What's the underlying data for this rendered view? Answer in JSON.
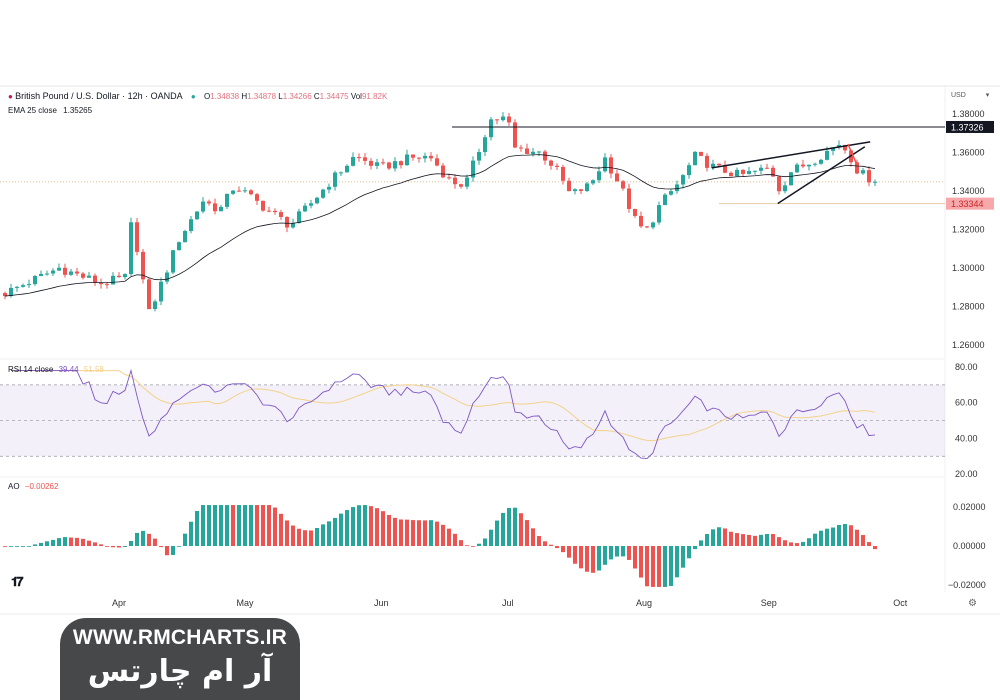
{
  "header": {
    "symbol": "British Pound / U.S. Dollar · 12h · OANDA",
    "o_label": "O",
    "o": "1.34838",
    "h_label": "H",
    "h": "1.34878",
    "l_label": "L",
    "l": "1.34266",
    "c_label": "C",
    "c": "1.34475",
    "vol_label": "Vol",
    "vol": "91.82K",
    "ema_label": "EMA 25 close",
    "ema": "1.35265",
    "currency": "USD"
  },
  "rsi_header": {
    "label": "RSI 14 close",
    "value": "39.44",
    "ma": "51.58"
  },
  "ao_header": {
    "label": "AO",
    "value": "−0.00262"
  },
  "watermark": {
    "url": "WWW.RMCHARTS.IR",
    "name": "آر ام چارتس"
  },
  "logo": "TV",
  "colors": {
    "up": "#26a69a",
    "down": "#ef5350",
    "ema": "#131722",
    "rsi": "#7e57c2",
    "rsi_ma": "#f3d28b",
    "support": "#e3c9a8"
  },
  "chart_data": {
    "type": "candlestick",
    "title": "British Pound / U.S. Dollar · 12h · OANDA",
    "price_axis": {
      "ticks": [
        "1.38000",
        "1.36000",
        "1.34000",
        "1.32000",
        "1.30000",
        "1.28000",
        "1.26000"
      ],
      "range": [
        1.2525,
        1.3925
      ]
    },
    "price_labels": [
      {
        "value": 1.37326,
        "text": "1.37326",
        "style": "dark"
      },
      {
        "value": 1.33344,
        "text": "1.33344",
        "style": "red"
      }
    ],
    "last_close": 1.34475,
    "x_axis": {
      "ticks": [
        {
          "label": "Apr",
          "index": 19
        },
        {
          "label": "May",
          "index": 40
        },
        {
          "label": "Jun",
          "index": 62.7
        },
        {
          "label": "Jul",
          "index": 83.8
        },
        {
          "label": "Aug",
          "index": 106.5
        },
        {
          "label": "Sep",
          "index": 127.3
        },
        {
          "label": "Oct",
          "index": 149.2
        }
      ]
    },
    "candle_count": 146,
    "close_path": [
      [
        0,
        1.287
      ],
      [
        9,
        1.3
      ],
      [
        16,
        1.292
      ],
      [
        20,
        1.295
      ],
      [
        21,
        1.322
      ],
      [
        22.5,
        1.305
      ],
      [
        23.8,
        1.275
      ],
      [
        25.8,
        1.29
      ],
      [
        29,
        1.315
      ],
      [
        33,
        1.335
      ],
      [
        35.8,
        1.33
      ],
      [
        38.3,
        1.343
      ],
      [
        42.5,
        1.333
      ],
      [
        47.5,
        1.322
      ],
      [
        50.8,
        1.333
      ],
      [
        54.2,
        1.345
      ],
      [
        58.3,
        1.358
      ],
      [
        62.5,
        1.352
      ],
      [
        67.5,
        1.357
      ],
      [
        70.8,
        1.358
      ],
      [
        74.2,
        1.345
      ],
      [
        76.7,
        1.343
      ],
      [
        79.2,
        1.363
      ],
      [
        80.8,
        1.377
      ],
      [
        83.7,
        1.378
      ],
      [
        85,
        1.362
      ],
      [
        89.2,
        1.36
      ],
      [
        91.7,
        1.352
      ],
      [
        94.2,
        1.338
      ],
      [
        97.5,
        1.343
      ],
      [
        100,
        1.357
      ],
      [
        102.5,
        1.343
      ],
      [
        105,
        1.325
      ],
      [
        106.7,
        1.318
      ],
      [
        109.2,
        1.333
      ],
      [
        112.5,
        1.345
      ],
      [
        115,
        1.358
      ],
      [
        118.3,
        1.352
      ],
      [
        122.5,
        1.348
      ],
      [
        127.5,
        1.352
      ],
      [
        129.2,
        1.34
      ],
      [
        130.8,
        1.35
      ],
      [
        134.2,
        1.355
      ],
      [
        139.2,
        1.365
      ],
      [
        140.5,
        1.36
      ],
      [
        142.2,
        1.35
      ],
      [
        145,
        1.3448
      ]
    ],
    "ema_period": 25,
    "trendlines": [
      {
        "name": "resistance",
        "from": [
          74.5,
          1.37326
        ],
        "to": [
          157,
          1.37326
        ]
      },
      {
        "name": "support",
        "from": [
          119,
          1.33344
        ],
        "to": [
          157,
          1.33344
        ]
      },
      {
        "name": "wedge-upper",
        "from": [
          117.8,
          1.352
        ],
        "to": [
          144.2,
          1.3655
        ]
      },
      {
        "name": "wedge-lower",
        "from": [
          128.8,
          1.3335
        ],
        "to": [
          143.3,
          1.363
        ]
      }
    ],
    "rsi": {
      "period": 14,
      "ticks": [
        "80.00",
        "60.00",
        "40.00",
        "20.00"
      ],
      "range": [
        20,
        80
      ],
      "bands": [
        30,
        50,
        70
      ]
    },
    "ao": {
      "ticks": [
        "0.02000",
        "0.00000",
        "−0.02000"
      ],
      "range": [
        -0.02,
        0.02
      ]
    }
  }
}
